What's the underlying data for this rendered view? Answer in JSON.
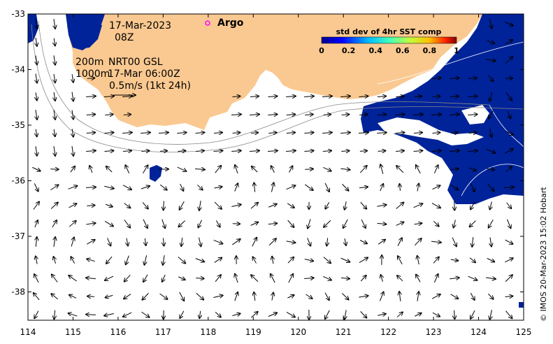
{
  "map": {
    "date": "17-Mar-2023",
    "time": "08Z",
    "legend_marker_label": "Argo",
    "depth_shallow": "200m",
    "depth_deep": "1000m",
    "product": "NRT00 GSL",
    "product_time": "17-Mar 06:00Z",
    "scale_label": "0.5m/s (1kt 24h)",
    "credit": "© IMOS 20-Mar-2023 15:02 Hobart",
    "colors": {
      "land": "#fac991",
      "sst_low": "#00239a",
      "marker": "#ff00ff"
    }
  },
  "colorbar": {
    "title": "std dev of 4hr SST comp",
    "ticks": [
      "0",
      "0.2",
      "0.4",
      "0.6",
      "0.8",
      "1"
    ]
  },
  "axes": {
    "x_ticks": [
      "114",
      "115",
      "116",
      "117",
      "118",
      "119",
      "120",
      "121",
      "122",
      "123",
      "124",
      "125"
    ],
    "y_ticks": [
      "-33",
      "-34",
      "-35",
      "-36",
      "-37",
      "-38"
    ]
  }
}
